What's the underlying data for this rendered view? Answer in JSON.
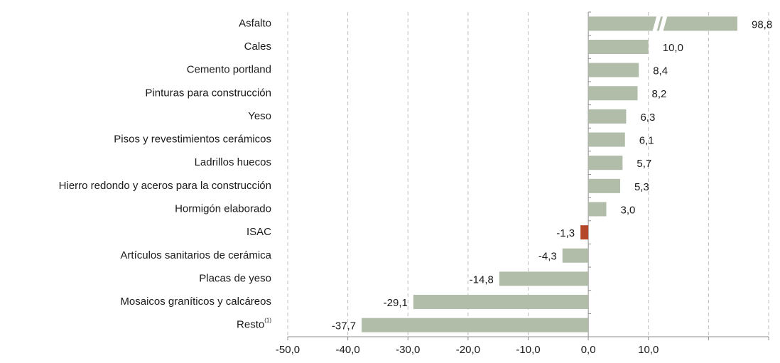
{
  "chart_data": {
    "type": "bar",
    "orientation": "horizontal",
    "categories": [
      "Asfalto",
      "Cales",
      "Cemento portland",
      "Pinturas para construcción",
      "Yeso",
      "Pisos y revestimientos cerámicos",
      "Ladrillos huecos",
      "Hierro redondo y aceros para la construcción",
      "Hormigón elaborado",
      "ISAC",
      "Artículos sanitarios de cerámica",
      "Placas de yeso",
      "Mosaicos graníticos y calcáreos",
      "Resto"
    ],
    "category_superscripts": [
      null,
      null,
      null,
      null,
      null,
      null,
      null,
      null,
      null,
      null,
      null,
      null,
      null,
      "(1)"
    ],
    "values": [
      98.8,
      10.0,
      8.4,
      8.2,
      6.3,
      6.1,
      5.7,
      5.3,
      3.0,
      -1.3,
      -4.3,
      -14.8,
      -29.1,
      -37.7
    ],
    "value_labels": [
      "98,8",
      "10,0",
      "8,4",
      "8,2",
      "6,3",
      "6,1",
      "5,7",
      "5,3",
      "3,0",
      "-1,3",
      "-4,3",
      "-14,8",
      "-29,1",
      "-37,7"
    ],
    "colors": [
      "#b1bca9",
      "#b1bca9",
      "#b1bca9",
      "#b1bca9",
      "#b1bca9",
      "#b1bca9",
      "#b1bca9",
      "#b1bca9",
      "#b1bca9",
      "#b4472a",
      "#b1bca9",
      "#b1bca9",
      "#b1bca9",
      "#b1bca9"
    ],
    "xlim": [
      -50,
      30
    ],
    "xticks": [
      {
        "value": -50,
        "label": "-50,0"
      },
      {
        "value": -40,
        "label": "-40,0"
      },
      {
        "value": -30,
        "label": "-30,0"
      },
      {
        "value": -20,
        "label": "-20,0"
      },
      {
        "value": -10,
        "label": "-10,0"
      },
      {
        "value": 0,
        "label": "0,0"
      },
      {
        "value": 10,
        "label": "10,0"
      },
      {
        "value": 20,
        "label": null
      },
      {
        "value": 30,
        "label": null
      }
    ],
    "grid": true
  }
}
